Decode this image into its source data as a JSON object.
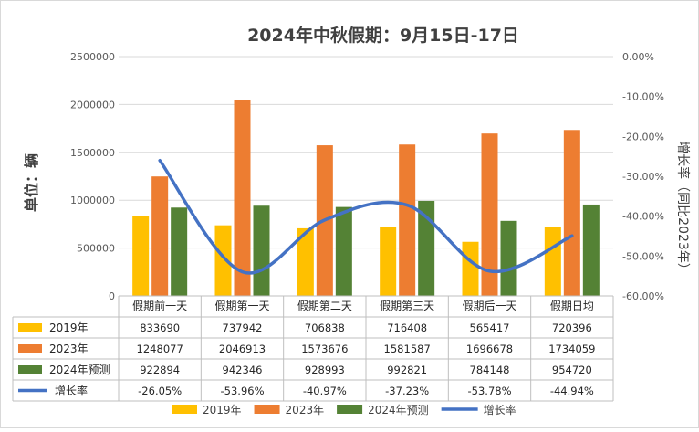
{
  "chart_data": {
    "type": "bar",
    "title": "2024年中秋假期：9月15日-17日",
    "ylabel": "单位：辆",
    "y2label": "增长率（同比2023年）",
    "ylim": [
      0,
      2500000
    ],
    "y2lim": [
      -60,
      0
    ],
    "yticks": [
      "0",
      "500000",
      "1000000",
      "1500000",
      "2000000",
      "2500000"
    ],
    "y2ticks": [
      "0.00%",
      "-10.00%",
      "-20.00%",
      "-30.00%",
      "-40.00%",
      "-50.00%",
      "-60.00%"
    ],
    "categories": [
      "假期前一天",
      "假期第一天",
      "假期第二天",
      "假期第三天",
      "假期后一天",
      "假期日均"
    ],
    "series": [
      {
        "name": "2019年",
        "kind": "bar",
        "color": "#FFC000",
        "values": [
          833690,
          737942,
          706838,
          716408,
          565417,
          720396
        ]
      },
      {
        "name": "2023年",
        "kind": "bar",
        "color": "#ED7D31",
        "values": [
          1248077,
          2046913,
          1573676,
          1581587,
          1696678,
          1734059
        ]
      },
      {
        "name": "2024年预测",
        "kind": "bar",
        "color": "#548235",
        "values": [
          922894,
          942346,
          928993,
          992821,
          784148,
          954720
        ]
      },
      {
        "name": "增长率",
        "kind": "line",
        "axis": "right",
        "color": "#4472C4",
        "values": [
          -26.05,
          -53.96,
          -40.97,
          -37.23,
          -53.78,
          -44.94
        ]
      }
    ],
    "table": {
      "rows": [
        [
          "833690",
          "737942",
          "706838",
          "716408",
          "565417",
          "720396"
        ],
        [
          "1248077",
          "2046913",
          "1573676",
          "1581587",
          "1696678",
          "1734059"
        ],
        [
          "922894",
          "942346",
          "928993",
          "992821",
          "784148",
          "954720"
        ],
        [
          "-26.05%",
          "-53.96%",
          "-40.97%",
          "-37.23%",
          "-53.78%",
          "-44.94%"
        ]
      ]
    },
    "grid": true,
    "legend": "bottom"
  }
}
